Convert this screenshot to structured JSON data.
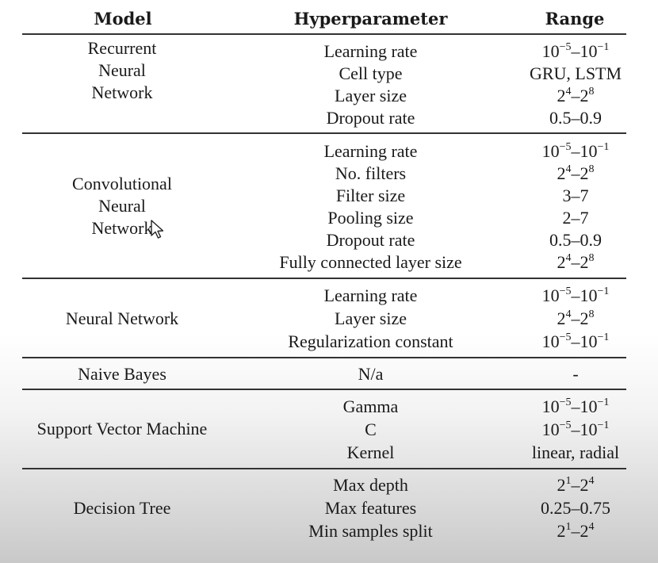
{
  "headers": {
    "model": "Model",
    "hyperparameter": "Hyperparameter",
    "range": "Range"
  },
  "groups": [
    {
      "model_lines": [
        "Recurrent",
        "Neural",
        "Network"
      ],
      "rows": [
        {
          "hp": "Learning rate",
          "range": [
            {
              "b": "10"
            },
            {
              "s": "−5"
            },
            {
              "b": "–10"
            },
            {
              "s": "−1"
            }
          ]
        },
        {
          "hp": "Cell type",
          "range": [
            {
              "b": "GRU, LSTM"
            }
          ]
        },
        {
          "hp": "Layer size",
          "range": [
            {
              "b": "2"
            },
            {
              "s": "4"
            },
            {
              "b": "–2"
            },
            {
              "s": "8"
            }
          ]
        },
        {
          "hp": "Dropout rate",
          "range": [
            {
              "b": "0.5–0.9"
            }
          ]
        }
      ]
    },
    {
      "model_lines": [
        "Convolutional",
        "Neural",
        "Network"
      ],
      "rows": [
        {
          "hp": "Learning rate",
          "range": [
            {
              "b": "10"
            },
            {
              "s": "−5"
            },
            {
              "b": "–10"
            },
            {
              "s": "−1"
            }
          ]
        },
        {
          "hp": "No. filters",
          "range": [
            {
              "b": "2"
            },
            {
              "s": "4"
            },
            {
              "b": "–2"
            },
            {
              "s": "8"
            }
          ]
        },
        {
          "hp": "Filter size",
          "range": [
            {
              "b": "3–7"
            }
          ]
        },
        {
          "hp": "Pooling size",
          "range": [
            {
              "b": "2–7"
            }
          ]
        },
        {
          "hp": "Dropout rate",
          "range": [
            {
              "b": "0.5–0.9"
            }
          ]
        },
        {
          "hp": "Fully connected layer size",
          "range": [
            {
              "b": "2"
            },
            {
              "s": "4"
            },
            {
              "b": "–2"
            },
            {
              "s": "8"
            }
          ]
        }
      ]
    },
    {
      "model_lines": [
        "Neural Network"
      ],
      "rows": [
        {
          "hp": "Learning rate",
          "range": [
            {
              "b": "10"
            },
            {
              "s": "−5"
            },
            {
              "b": "–10"
            },
            {
              "s": "−1"
            }
          ]
        },
        {
          "hp": "Layer size",
          "range": [
            {
              "b": "2"
            },
            {
              "s": "4"
            },
            {
              "b": "–2"
            },
            {
              "s": "8"
            }
          ]
        },
        {
          "hp": "Regularization constant",
          "range": [
            {
              "b": "10"
            },
            {
              "s": "−5"
            },
            {
              "b": "–10"
            },
            {
              "s": "−1"
            }
          ]
        }
      ]
    },
    {
      "model_lines": [
        "Naive Bayes"
      ],
      "rows": [
        {
          "hp": "N/a",
          "range": [
            {
              "b": "-"
            }
          ]
        }
      ]
    },
    {
      "model_lines": [
        "Support Vector Machine"
      ],
      "rows": [
        {
          "hp": "Gamma",
          "range": [
            {
              "b": "10"
            },
            {
              "s": "−5"
            },
            {
              "b": "–10"
            },
            {
              "s": "−1"
            }
          ]
        },
        {
          "hp": "C",
          "range": [
            {
              "b": "10"
            },
            {
              "s": "−5"
            },
            {
              "b": "–10"
            },
            {
              "s": "−1"
            }
          ]
        },
        {
          "hp": "Kernel",
          "range": [
            {
              "b": "linear, radial"
            }
          ]
        }
      ]
    },
    {
      "model_lines": [
        "Decision Tree"
      ],
      "rows": [
        {
          "hp": "Max depth",
          "range": [
            {
              "b": "2"
            },
            {
              "s": "1"
            },
            {
              "b": "–2"
            },
            {
              "s": "4"
            }
          ]
        },
        {
          "hp": "Max features",
          "range": [
            {
              "b": "0.25–0.75"
            }
          ]
        },
        {
          "hp": "Min samples split",
          "range": [
            {
              "b": "2"
            },
            {
              "s": "1"
            },
            {
              "b": "–2"
            },
            {
              "s": "4"
            }
          ]
        }
      ]
    }
  ],
  "icons": {
    "cursor": "mouse-pointer-icon"
  }
}
